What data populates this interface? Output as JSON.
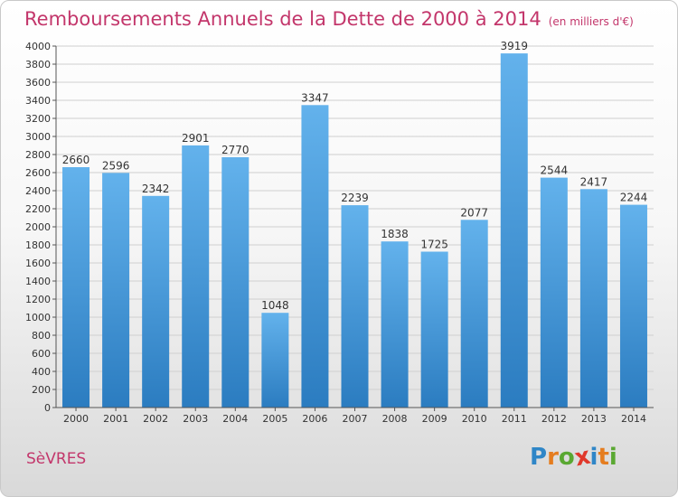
{
  "header": {
    "title": "Remboursements Annuels de la Dette de 2000 à 2014",
    "subtitle": "(en milliers d'€)"
  },
  "footer": {
    "city": "SèVRES",
    "logo_letters": [
      "P",
      "r",
      "o",
      "x",
      "i",
      "t",
      "i"
    ],
    "logo_colors": [
      "#2f86c7",
      "#e57d1f",
      "#5aa832",
      "#e0382b",
      "#2f86c7",
      "#e57d1f",
      "#5aa832"
    ]
  },
  "colors": {
    "bar_top": "#63b2ec",
    "bar_bottom": "#2b7cc0",
    "grid": "#cfcfcf",
    "title": "#c3366b"
  },
  "chart_data": {
    "type": "bar",
    "categories": [
      "2000",
      "2001",
      "2002",
      "2003",
      "2004",
      "2005",
      "2006",
      "2007",
      "2008",
      "2009",
      "2010",
      "2011",
      "2012",
      "2013",
      "2014"
    ],
    "values": [
      2660,
      2596,
      2342,
      2901,
      2770,
      1048,
      3347,
      2239,
      1838,
      1725,
      2077,
      3919,
      2544,
      2417,
      2244
    ],
    "ylim": [
      0,
      4000
    ],
    "yticks": [
      0,
      200,
      400,
      600,
      800,
      1000,
      1200,
      1400,
      1600,
      1800,
      2000,
      2200,
      2400,
      2600,
      2800,
      3000,
      3200,
      3400,
      3600,
      3800,
      4000
    ],
    "grid": true,
    "data_labels": true
  }
}
